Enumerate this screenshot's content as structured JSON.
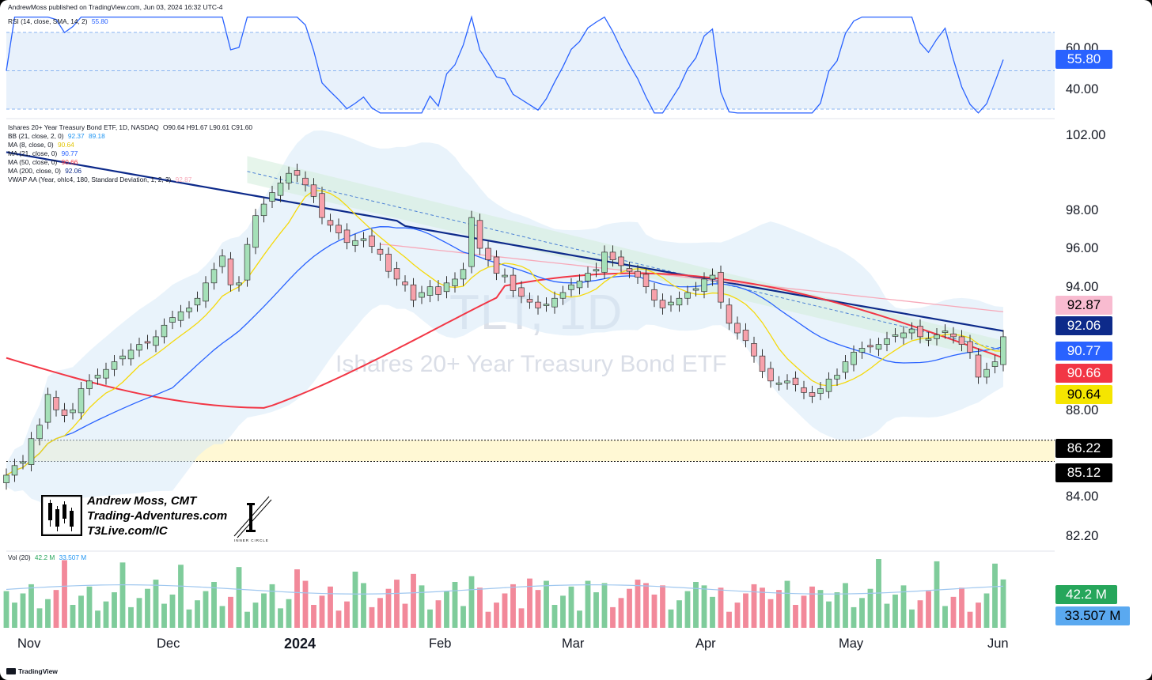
{
  "header": {
    "publisher": "AndrewMoss published on TradingView.com, Jun 03, 2024 16:32 UTC-4"
  },
  "footer": {
    "brand": "TradingView"
  },
  "watermark": {
    "symbol": "TLT, 1D",
    "name": "Ishares 20+ Year Treasury Bond ETF"
  },
  "branding": {
    "author": "Andrew Moss, CMT",
    "site1": "Trading-Adventures.com",
    "site2": "T3Live.com/IC",
    "circle_label": "INNER CIRCLE"
  },
  "rsi": {
    "label": "RSI (14, close, SMA, 14, 2)",
    "value": "55.80",
    "axis": [
      "60.00",
      "40.00"
    ],
    "upper": 70,
    "lower": 30,
    "mid": 50,
    "color": "#2962ff"
  },
  "price_legend": {
    "title": "Ishares 20+ Year Treasury Bond ETF, 1D, NASDAQ",
    "ohlc": "O90.64  H91.67  L90.61  C91.60",
    "indicators": [
      {
        "label": "BB (21, close, 2, 0)",
        "values": [
          "92.37",
          "89.18"
        ],
        "color": "#2196f3"
      },
      {
        "label": "MA (8, close, 0)",
        "values": [
          "90.64"
        ],
        "color": "#f5d90a"
      },
      {
        "label": "MA (21, close, 0)",
        "values": [
          "90.77"
        ],
        "color": "#2962ff"
      },
      {
        "label": "MA (50, close, 0)",
        "values": [
          "90.66"
        ],
        "color": "#f23645"
      },
      {
        "label": "MA (200, close, 0)",
        "values": [
          "92.06"
        ],
        "color": "#0d2a8a"
      },
      {
        "label": "VWAP AA (Year, ohlc4, 180, Standard Deviation, 1, 2, 3)",
        "values": [
          "92.87"
        ],
        "color": "#f7a8b8"
      }
    ]
  },
  "price_axis": [
    "102.00",
    "98.00",
    "96.00",
    "94.00",
    "88.00",
    "84.00",
    "82.20"
  ],
  "price_badges": [
    {
      "value": "92.87",
      "bg": "#f8bbd0",
      "fg": "#000000"
    },
    {
      "value": "92.06",
      "bg": "#0d2a8a",
      "fg": "#ffffff"
    },
    {
      "value": "90.77",
      "bg": "#2962ff",
      "fg": "#ffffff"
    },
    {
      "value": "90.66",
      "bg": "#f23645",
      "fg": "#ffffff"
    },
    {
      "value": "90.64",
      "bg": "#f5e500",
      "fg": "#000000"
    },
    {
      "value": "86.22",
      "bg": "#000000",
      "fg": "#ffffff"
    },
    {
      "value": "85.12",
      "bg": "#000000",
      "fg": "#ffffff"
    }
  ],
  "volume": {
    "label": "Vol (20)",
    "values": [
      "42.2 M",
      "33.507 M"
    ],
    "badges": [
      {
        "value": "42.2 M",
        "bg": "#26a65b",
        "fg": "#ffffff"
      },
      {
        "value": "33.507 M",
        "bg": "#5aa9f0",
        "fg": "#000000"
      }
    ]
  },
  "months": [
    "Nov",
    "Dec",
    "2024",
    "Feb",
    "Mar",
    "Apr",
    "May",
    "Jun"
  ],
  "chart_data": {
    "type": "candlestick",
    "title": "Ishares 20+ Year Treasury Bond ETF, 1D, NASDAQ",
    "ylim": [
      82.2,
      102
    ],
    "x_ticks": [
      "Nov",
      "Dec",
      "2024",
      "Feb",
      "Mar",
      "Apr",
      "May",
      "Jun"
    ],
    "last": {
      "open": 90.64,
      "high": 91.67,
      "low": 90.61,
      "close": 91.6
    },
    "support_zone": [
      85.12,
      86.22
    ],
    "close_series": [
      84.4,
      84.9,
      85.1,
      86.3,
      87.0,
      88.6,
      87.8,
      87.5,
      87.8,
      88.9,
      89.3,
      89.6,
      89.9,
      90.3,
      90.6,
      90.9,
      91.2,
      91.3,
      91.6,
      92.2,
      92.6,
      92.9,
      93.1,
      93.6,
      94.4,
      95.1,
      95.8,
      94.3,
      94.4,
      96.4,
      97.9,
      98.5,
      99.1,
      99.6,
      100.1,
      100.0,
      99.5,
      98.9,
      97.8,
      97.4,
      97.0,
      96.5,
      96.6,
      96.7,
      96.3,
      95.9,
      95.0,
      94.6,
      94.3,
      93.5,
      93.9,
      94.2,
      93.8,
      94.4,
      94.6,
      95.1,
      97.8,
      96.2,
      95.6,
      94.9,
      94.8,
      94.0,
      93.7,
      93.4,
      93.1,
      93.3,
      93.6,
      93.9,
      94.3,
      94.5,
      94.9,
      95.1,
      96.0,
      95.6,
      95.3,
      95.0,
      94.7,
      94.2,
      93.5,
      93.1,
      93.4,
      93.6,
      93.9,
      94.1,
      94.6,
      94.8,
      93.4,
      92.3,
      91.8,
      91.4,
      90.6,
      89.8,
      89.3,
      89.2,
      89.3,
      89.1,
      88.7,
      88.5,
      88.9,
      89.4,
      89.6,
      90.3,
      90.8,
      91.0,
      91.1,
      91.2,
      91.5,
      91.7,
      91.8,
      92.0,
      91.6,
      91.5,
      91.7,
      91.9,
      91.6,
      91.2,
      90.8,
      89.5,
      89.9,
      90.3,
      91.6
    ],
    "volume_series": [
      42.2
    ]
  }
}
